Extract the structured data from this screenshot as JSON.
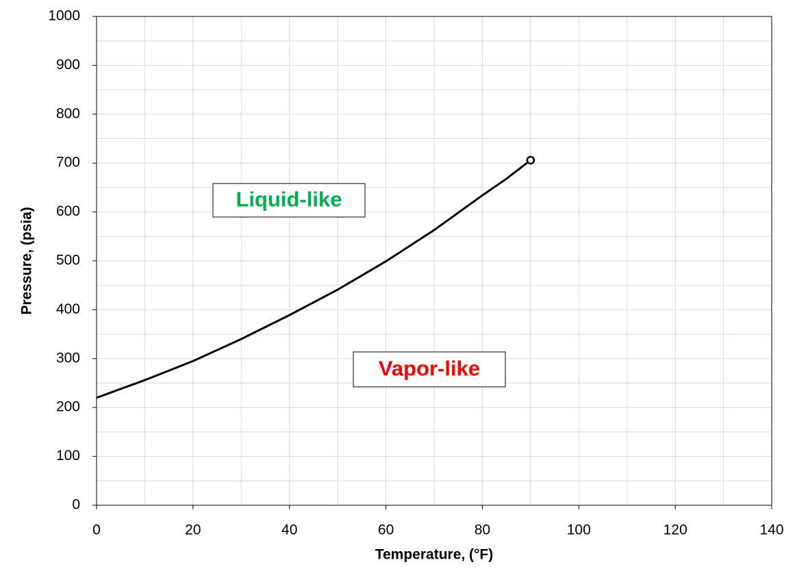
{
  "chart_data": {
    "type": "line",
    "x_label": "Temperature, (°F)",
    "y_label": "Pressure, (psia)",
    "x": [
      0,
      10,
      20,
      30,
      40,
      50,
      60,
      70,
      80,
      85,
      90
    ],
    "series": [
      {
        "color": "#000000",
        "values": [
          220,
          256,
          295,
          340,
          389,
          441,
          499,
          563,
          634,
          668,
          706
        ]
      }
    ],
    "end_marker": {
      "x": 90,
      "y": 706
    },
    "xlim": [
      0,
      140
    ],
    "ylim": [
      0,
      1000
    ],
    "xticks": [
      0,
      20,
      40,
      60,
      80,
      100,
      120,
      140
    ],
    "yticks": [
      0,
      100,
      200,
      300,
      400,
      500,
      600,
      700,
      800,
      900,
      1000
    ],
    "xminorticks": [
      10,
      30,
      50,
      70,
      90,
      110,
      130
    ],
    "yminorticks": [
      50,
      150,
      250,
      350,
      450,
      550,
      650,
      750,
      850,
      950
    ],
    "grid": true,
    "annotations": [
      {
        "text": "Liquid-like",
        "color": "#00b050"
      },
      {
        "text": "Vapor-like",
        "color": "#ff0000"
      }
    ]
  }
}
